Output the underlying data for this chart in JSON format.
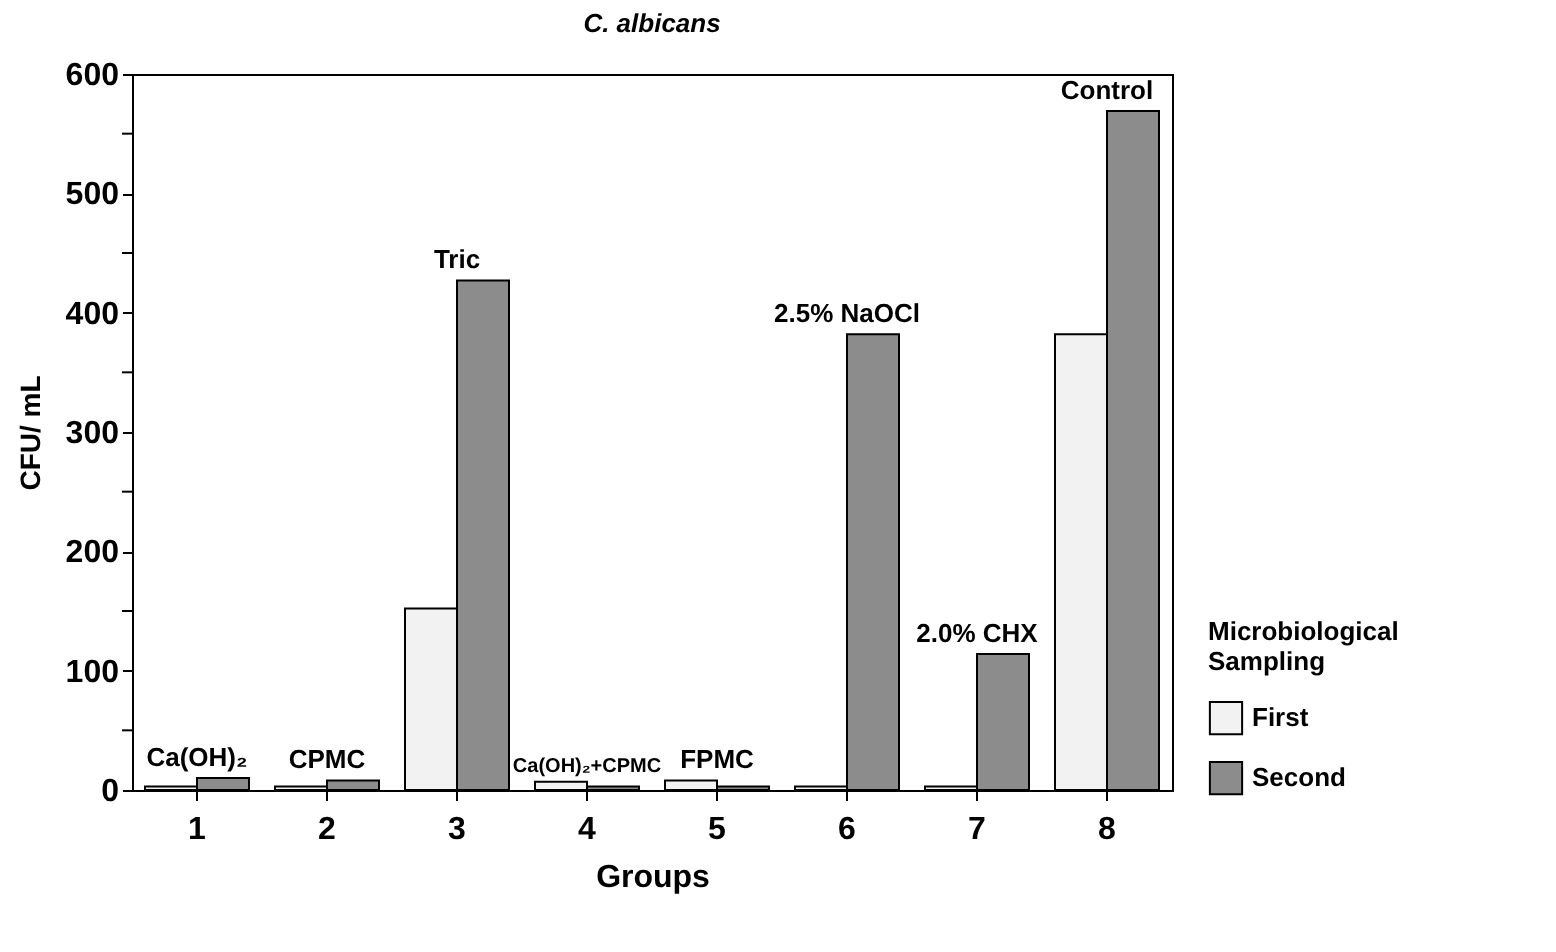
{
  "chart_data": {
    "type": "bar",
    "title": "C. albicans",
    "xlabel": "Groups",
    "ylabel": "CFU/ mL",
    "legend_title": "Microbiological Sampling",
    "categories": [
      "1",
      "2",
      "3",
      "4",
      "5",
      "6",
      "7",
      "8"
    ],
    "series": [
      {
        "name": "First",
        "color": "#f2f2f2",
        "values": [
          3,
          3,
          152,
          7,
          8,
          3,
          3,
          382
        ]
      },
      {
        "name": "Second",
        "color": "#8c8c8c",
        "values": [
          10,
          8,
          427,
          3,
          3,
          382,
          114,
          569
        ]
      }
    ],
    "ylim": [
      0,
      600
    ],
    "yticks": [
      0,
      {
        "value": 50,
        "label": null
      },
      100,
      {
        "value": 150,
        "label": null
      },
      200,
      {
        "value": 250,
        "label": null
      },
      300,
      {
        "value": 350,
        "label": null
      },
      400,
      {
        "value": 450,
        "label": null
      },
      500,
      {
        "value": 550,
        "label": null
      },
      600
    ],
    "annotations": [
      "Ca(OH)₂",
      "CPMC",
      "Tric",
      "Ca(OH)₂+CPMC",
      "FPMC",
      "2.5% NaOCl",
      "2.0% CHX",
      "Control"
    ],
    "grid": false,
    "legend": "bottom right"
  }
}
